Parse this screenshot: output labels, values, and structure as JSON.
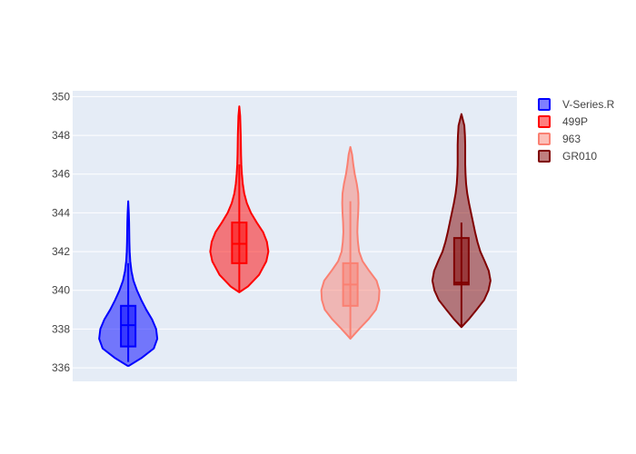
{
  "chart_data": {
    "type": "violin",
    "title": "",
    "xlabel": "",
    "ylabel": "",
    "ylim": [
      335.3,
      350.3
    ],
    "yticks": [
      336,
      338,
      340,
      342,
      344,
      346,
      348,
      350
    ],
    "grid": true,
    "legend_position": "top-right",
    "series": [
      {
        "name": "V-Series.R",
        "color": "#0000ff",
        "fill": "rgba(0,0,255,0.5)",
        "min": 336.1,
        "max": 344.6,
        "q1": 337.1,
        "median": 338.2,
        "q3": 339.2,
        "whisker_low": 336.3,
        "whisker_high": 341.4,
        "density": [
          [
            336.1,
            0.02
          ],
          [
            336.5,
            0.45
          ],
          [
            337.0,
            0.88
          ],
          [
            337.5,
            1.0
          ],
          [
            338.0,
            0.96
          ],
          [
            338.5,
            0.82
          ],
          [
            339.0,
            0.62
          ],
          [
            339.5,
            0.45
          ],
          [
            340.0,
            0.3
          ],
          [
            340.5,
            0.18
          ],
          [
            341.0,
            0.11
          ],
          [
            341.5,
            0.07
          ],
          [
            342.0,
            0.05
          ],
          [
            342.5,
            0.04
          ],
          [
            343.0,
            0.035
          ],
          [
            343.5,
            0.03
          ],
          [
            344.0,
            0.02
          ],
          [
            344.6,
            0.0
          ]
        ]
      },
      {
        "name": "499P",
        "color": "#ff0000",
        "fill": "rgba(255,0,0,0.5)",
        "min": 339.9,
        "max": 349.5,
        "q1": 341.4,
        "median": 342.4,
        "q3": 343.5,
        "whisker_low": 339.9,
        "whisker_high": 346.5,
        "density": [
          [
            339.9,
            0.0
          ],
          [
            340.2,
            0.3
          ],
          [
            340.8,
            0.68
          ],
          [
            341.5,
            0.93
          ],
          [
            342.0,
            1.0
          ],
          [
            342.5,
            0.95
          ],
          [
            343.0,
            0.82
          ],
          [
            343.5,
            0.6
          ],
          [
            344.0,
            0.4
          ],
          [
            344.5,
            0.26
          ],
          [
            345.0,
            0.17
          ],
          [
            345.5,
            0.12
          ],
          [
            346.0,
            0.09
          ],
          [
            346.5,
            0.07
          ],
          [
            347.0,
            0.06
          ],
          [
            347.5,
            0.055
          ],
          [
            348.0,
            0.05
          ],
          [
            348.5,
            0.04
          ],
          [
            349.0,
            0.03
          ],
          [
            349.5,
            0.0
          ]
        ]
      },
      {
        "name": "963",
        "color": "#fa8072",
        "fill": "rgba(250,128,114,0.5)",
        "min": 337.5,
        "max": 347.4,
        "q1": 339.2,
        "median": 340.3,
        "q3": 341.4,
        "whisker_low": 337.5,
        "whisker_high": 344.6,
        "density": [
          [
            337.5,
            0.0
          ],
          [
            338.0,
            0.3
          ],
          [
            338.5,
            0.62
          ],
          [
            339.0,
            0.88
          ],
          [
            339.5,
            0.98
          ],
          [
            340.0,
            1.0
          ],
          [
            340.5,
            0.9
          ],
          [
            341.0,
            0.65
          ],
          [
            341.5,
            0.42
          ],
          [
            342.0,
            0.3
          ],
          [
            342.5,
            0.26
          ],
          [
            343.0,
            0.24
          ],
          [
            343.5,
            0.25
          ],
          [
            344.0,
            0.27
          ],
          [
            344.5,
            0.28
          ],
          [
            345.0,
            0.27
          ],
          [
            345.5,
            0.22
          ],
          [
            346.0,
            0.15
          ],
          [
            346.5,
            0.1
          ],
          [
            347.0,
            0.06
          ],
          [
            347.4,
            0.0
          ]
        ]
      },
      {
        "name": "GR010",
        "color": "#800000",
        "fill": "rgba(128,0,0,0.5)",
        "min": 338.1,
        "max": 349.1,
        "q1": 340.3,
        "median": 340.4,
        "q3": 342.7,
        "whisker_low": 338.1,
        "whisker_high": 343.5,
        "density": [
          [
            338.1,
            0.0
          ],
          [
            338.5,
            0.25
          ],
          [
            339.0,
            0.52
          ],
          [
            339.5,
            0.78
          ],
          [
            340.0,
            0.93
          ],
          [
            340.5,
            1.0
          ],
          [
            341.0,
            0.94
          ],
          [
            341.5,
            0.8
          ],
          [
            342.0,
            0.65
          ],
          [
            342.5,
            0.55
          ],
          [
            343.0,
            0.47
          ],
          [
            343.5,
            0.4
          ],
          [
            344.0,
            0.33
          ],
          [
            344.5,
            0.26
          ],
          [
            345.0,
            0.2
          ],
          [
            345.5,
            0.16
          ],
          [
            346.0,
            0.14
          ],
          [
            346.5,
            0.13
          ],
          [
            347.0,
            0.13
          ],
          [
            347.5,
            0.13
          ],
          [
            348.0,
            0.12
          ],
          [
            348.5,
            0.1
          ],
          [
            349.1,
            0.0
          ]
        ]
      }
    ]
  }
}
